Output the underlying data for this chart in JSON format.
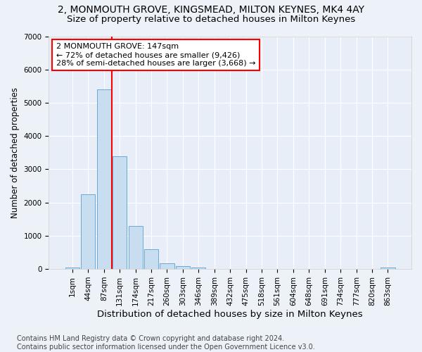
{
  "title1": "2, MONMOUTH GROVE, KINGSMEAD, MILTON KEYNES, MK4 4AY",
  "title2": "Size of property relative to detached houses in Milton Keynes",
  "xlabel": "Distribution of detached houses by size in Milton Keynes",
  "ylabel": "Number of detached properties",
  "footnote": "Contains HM Land Registry data © Crown copyright and database right 2024.\nContains public sector information licensed under the Open Government Licence v3.0.",
  "bar_categories": [
    "1sqm",
    "44sqm",
    "87sqm",
    "131sqm",
    "174sqm",
    "217sqm",
    "260sqm",
    "303sqm",
    "346sqm",
    "389sqm",
    "432sqm",
    "475sqm",
    "518sqm",
    "561sqm",
    "604sqm",
    "648sqm",
    "691sqm",
    "734sqm",
    "777sqm",
    "820sqm",
    "863sqm"
  ],
  "bar_values": [
    50,
    2250,
    5400,
    3400,
    1300,
    600,
    170,
    90,
    50,
    5,
    0,
    0,
    0,
    0,
    0,
    0,
    0,
    0,
    0,
    0,
    50
  ],
  "bar_color": "#c9ddf0",
  "bar_edgecolor": "#6aaad4",
  "vline_x": 2.5,
  "vline_color": "red",
  "annotation_text": "2 MONMOUTH GROVE: 147sqm\n← 72% of detached houses are smaller (9,426)\n28% of semi-detached houses are larger (3,668) →",
  "annotation_box_color": "white",
  "annotation_box_edgecolor": "red",
  "ylim": [
    0,
    7000
  ],
  "yticks": [
    0,
    1000,
    2000,
    3000,
    4000,
    5000,
    6000,
    7000
  ],
  "background_color": "#edf2f9",
  "plot_background": "#e8eef8",
  "title1_fontsize": 10,
  "title2_fontsize": 9.5,
  "xlabel_fontsize": 9.5,
  "ylabel_fontsize": 8.5,
  "tick_fontsize": 7.5,
  "annotation_fontsize": 8,
  "footnote_fontsize": 7
}
